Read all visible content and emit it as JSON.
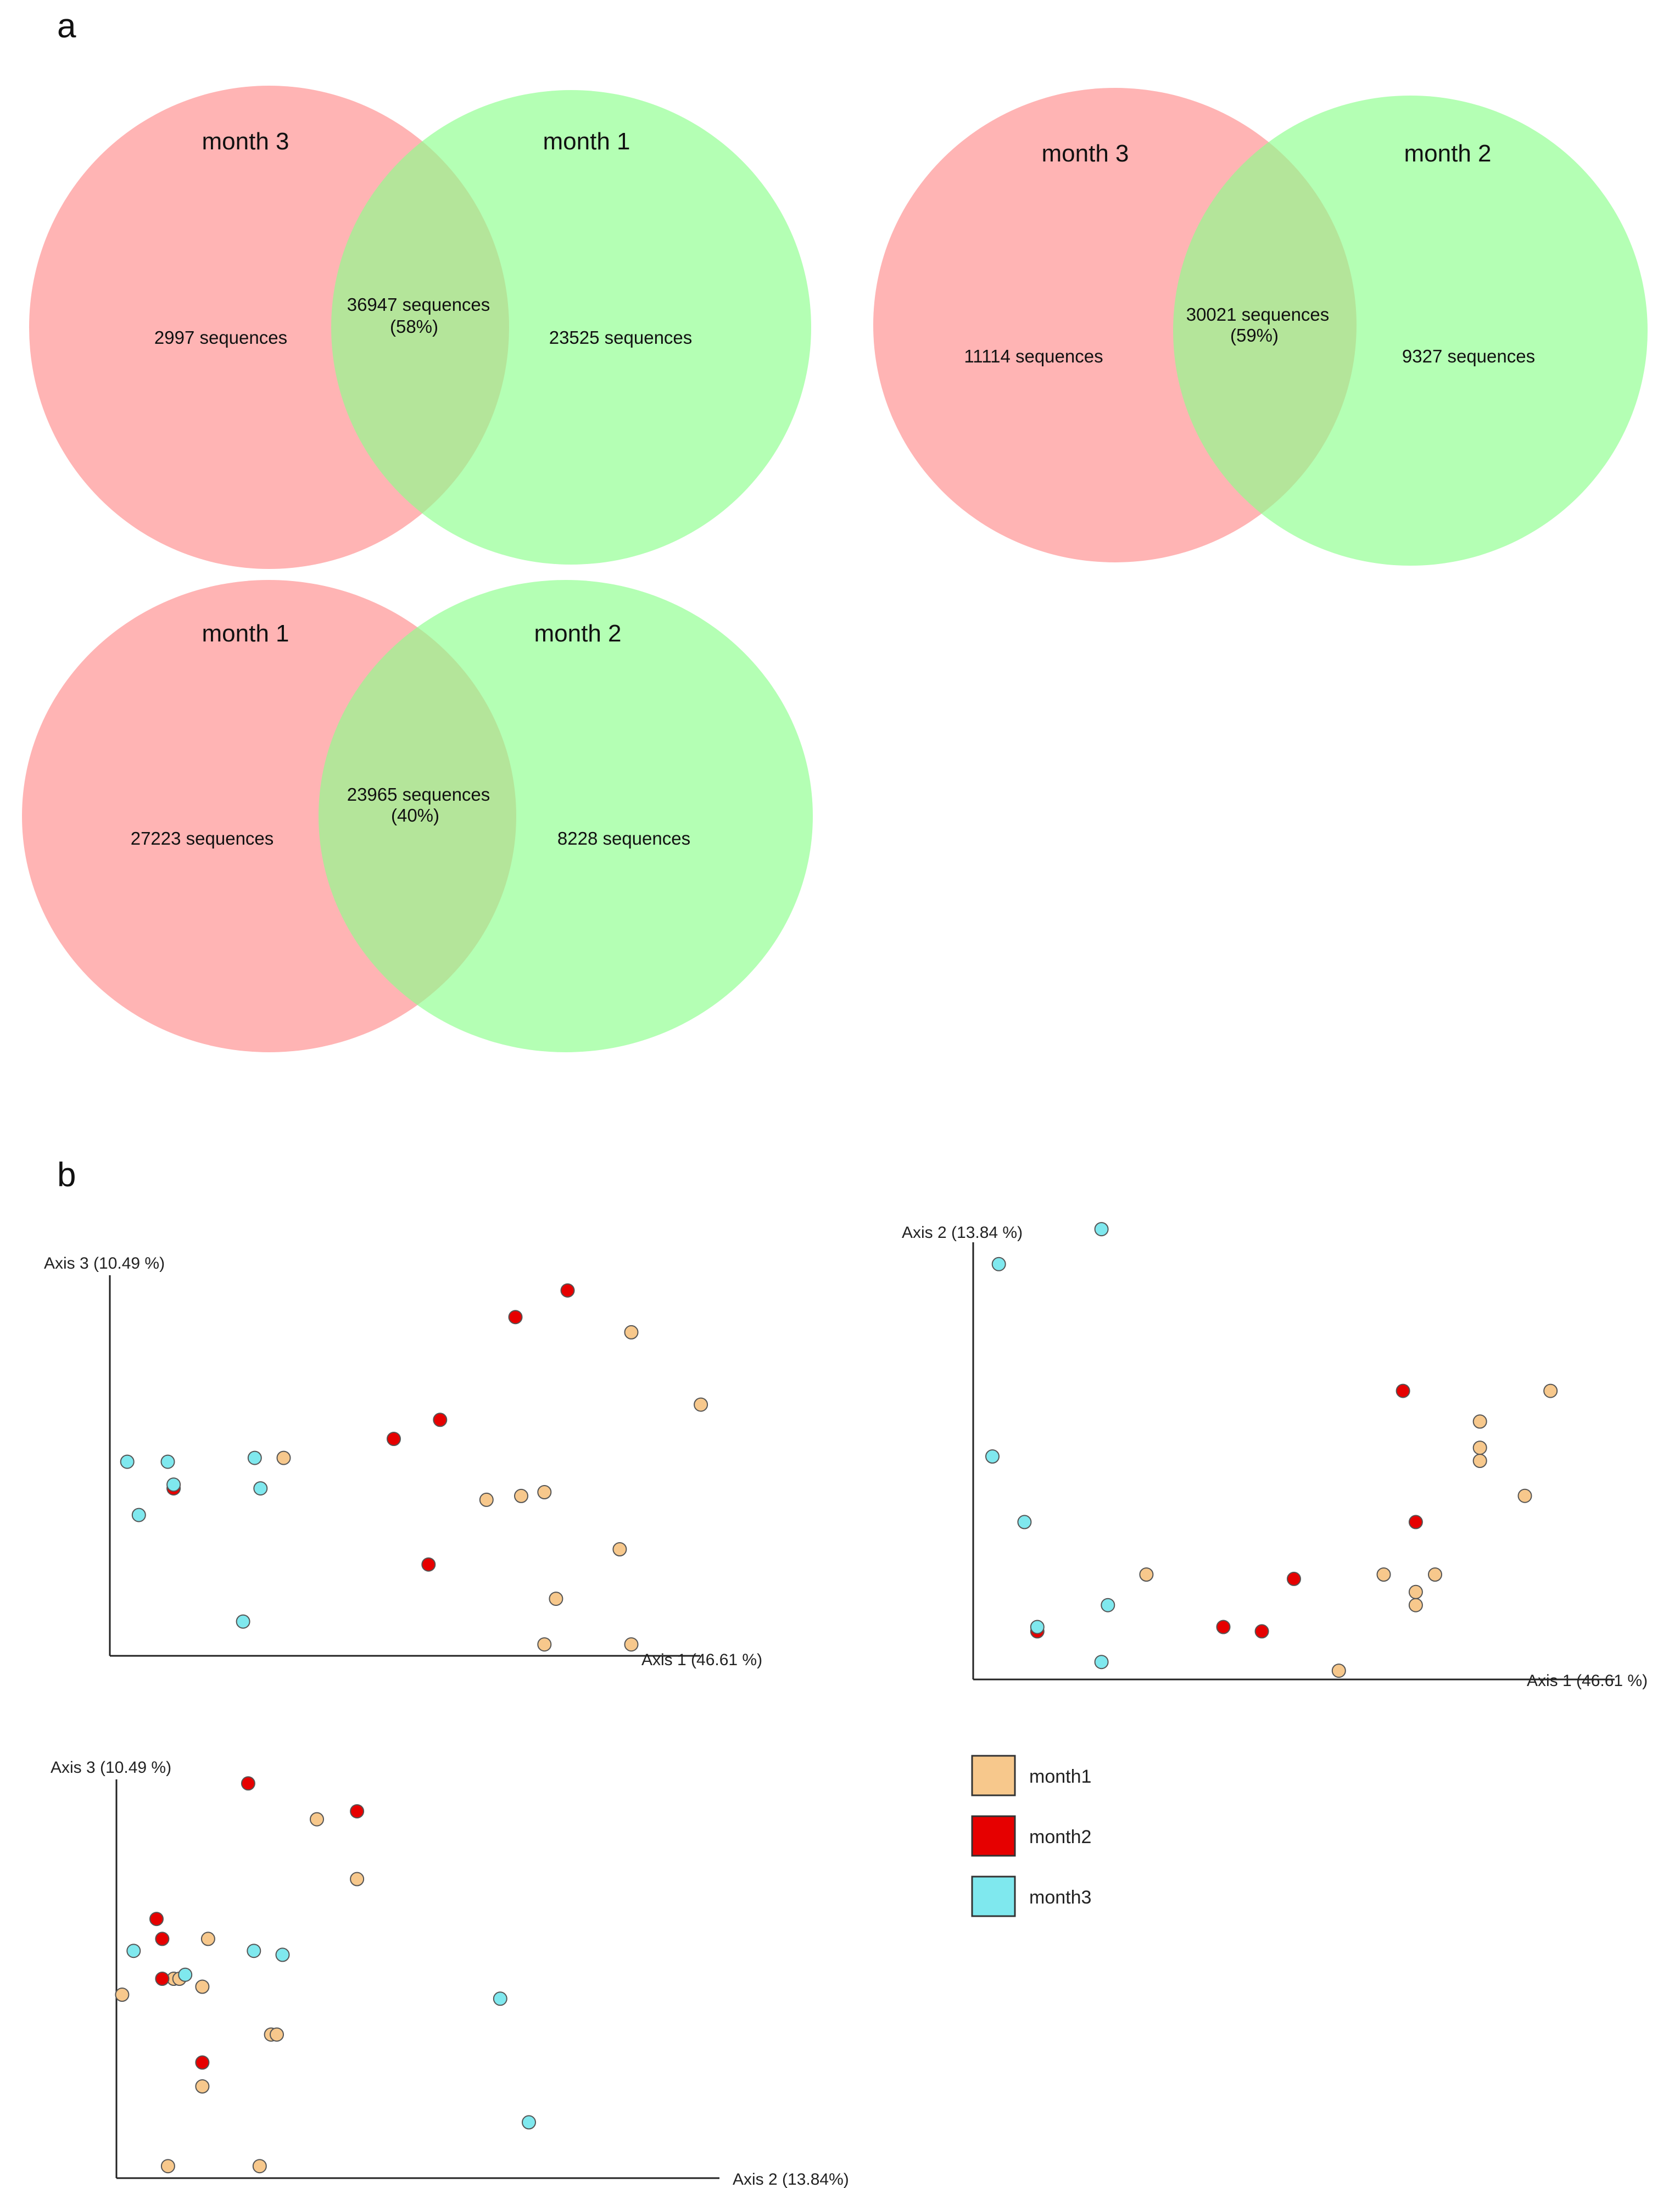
{
  "panel_labels": {
    "a": "a",
    "b": "b"
  },
  "colors": {
    "venn_left": "#ff8c8c",
    "venn_right": "#8cff8c",
    "month1": "#f7c88c",
    "month2": "#e60000",
    "month3": "#7fe8ee"
  },
  "chart_data": [
    {
      "type": "venn",
      "title": "",
      "sets": [
        {
          "label": "month 3",
          "count_text": "2997 sequences",
          "count": 2997
        },
        {
          "label": "month 1",
          "count_text": "23525 sequences",
          "count": 23525
        }
      ],
      "intersection": {
        "count_text": "36947 sequences",
        "pct_text": "(58%)",
        "count": 36947,
        "percent": 58
      }
    },
    {
      "type": "venn",
      "title": "",
      "sets": [
        {
          "label": "month 3",
          "count_text": "11114 sequences",
          "count": 11114
        },
        {
          "label": "month 2",
          "count_text": "9327 sequences",
          "count": 9327
        }
      ],
      "intersection": {
        "count_text": "30021 sequences",
        "pct_text": "(59%)",
        "count": 30021,
        "percent": 59
      }
    },
    {
      "type": "venn",
      "title": "",
      "sets": [
        {
          "label": "month 1",
          "count_text": "27223 sequences",
          "count": 27223
        },
        {
          "label": "month 2",
          "count_text": "8228 sequences",
          "count": 8228
        }
      ],
      "intersection": {
        "count_text": "23965 sequences",
        "pct_text": "(40%)",
        "count": 23965,
        "percent": 40
      }
    },
    {
      "type": "scatter",
      "xlabel": "Axis 1 (46.61 %)",
      "ylabel": "Axis 3 (10.49 %)",
      "xlim": [
        0,
        100
      ],
      "ylim": [
        0,
        100
      ],
      "series": [
        {
          "name": "month1",
          "points": [
            [
              30,
              52
            ],
            [
              65,
              41
            ],
            [
              71,
              42
            ],
            [
              75,
              43
            ],
            [
              90,
              85
            ],
            [
              102,
              66
            ],
            [
              88,
              28
            ],
            [
              77,
              15
            ],
            [
              75,
              3
            ],
            [
              90,
              3
            ]
          ]
        },
        {
          "name": "month2",
          "points": [
            [
              70,
              89
            ],
            [
              79,
              96
            ],
            [
              57,
              62
            ],
            [
              49,
              57
            ],
            [
              11,
              44
            ],
            [
              55,
              24
            ]
          ]
        },
        {
          "name": "month3",
          "points": [
            [
              3,
              51
            ],
            [
              10,
              51
            ],
            [
              25,
              52
            ],
            [
              5,
              37
            ],
            [
              11,
              45
            ],
            [
              26,
              44
            ],
            [
              23,
              9
            ]
          ]
        }
      ]
    },
    {
      "type": "scatter",
      "xlabel": "Axis 1 (46.61 %)",
      "ylabel": "Axis 2 (13.84 %)",
      "xlim": [
        0,
        100
      ],
      "ylim": [
        0,
        100
      ],
      "series": [
        {
          "name": "month1",
          "points": [
            [
              27,
              24
            ],
            [
              57,
              2
            ],
            [
              64,
              24
            ],
            [
              69,
              17
            ],
            [
              69,
              20
            ],
            [
              72,
              24
            ],
            [
              79,
              50
            ],
            [
              79,
              53
            ],
            [
              79,
              59
            ],
            [
              86,
              42
            ],
            [
              90,
              66
            ]
          ]
        },
        {
          "name": "month2",
          "points": [
            [
              67,
              66
            ],
            [
              69,
              36
            ],
            [
              50,
              23
            ],
            [
              39,
              12
            ],
            [
              45,
              11
            ],
            [
              10,
              11
            ]
          ]
        },
        {
          "name": "month3",
          "points": [
            [
              4,
              95
            ],
            [
              20,
              103
            ],
            [
              3,
              51
            ],
            [
              8,
              36
            ],
            [
              10,
              12
            ],
            [
              21,
              17
            ],
            [
              20,
              4
            ]
          ]
        }
      ]
    },
    {
      "type": "scatter",
      "xlabel": "Axis 2 (13.84%)",
      "ylabel": "Axis 3 (10.49 %)",
      "xlim": [
        0,
        100
      ],
      "ylim": [
        0,
        100
      ],
      "series": [
        {
          "name": "month1",
          "points": [
            [
              35,
              90
            ],
            [
              42,
              75
            ],
            [
              16,
              60
            ],
            [
              1,
              46
            ],
            [
              10,
              50
            ],
            [
              11,
              50
            ],
            [
              15,
              48
            ],
            [
              27,
              36
            ],
            [
              28,
              36
            ],
            [
              15,
              23
            ],
            [
              9,
              3
            ],
            [
              25,
              3
            ]
          ]
        },
        {
          "name": "month2",
          "points": [
            [
              23,
              99
            ],
            [
              42,
              92
            ],
            [
              7,
              65
            ],
            [
              8,
              60
            ],
            [
              8,
              50
            ],
            [
              15,
              29
            ]
          ]
        },
        {
          "name": "month3",
          "points": [
            [
              3,
              57
            ],
            [
              24,
              57
            ],
            [
              29,
              56
            ],
            [
              12,
              51
            ],
            [
              67,
              45
            ],
            [
              72,
              14
            ]
          ]
        }
      ]
    }
  ],
  "legend": [
    {
      "key": "month1",
      "label": "month1"
    },
    {
      "key": "month2",
      "label": "month2"
    },
    {
      "key": "month3",
      "label": "month3"
    }
  ]
}
